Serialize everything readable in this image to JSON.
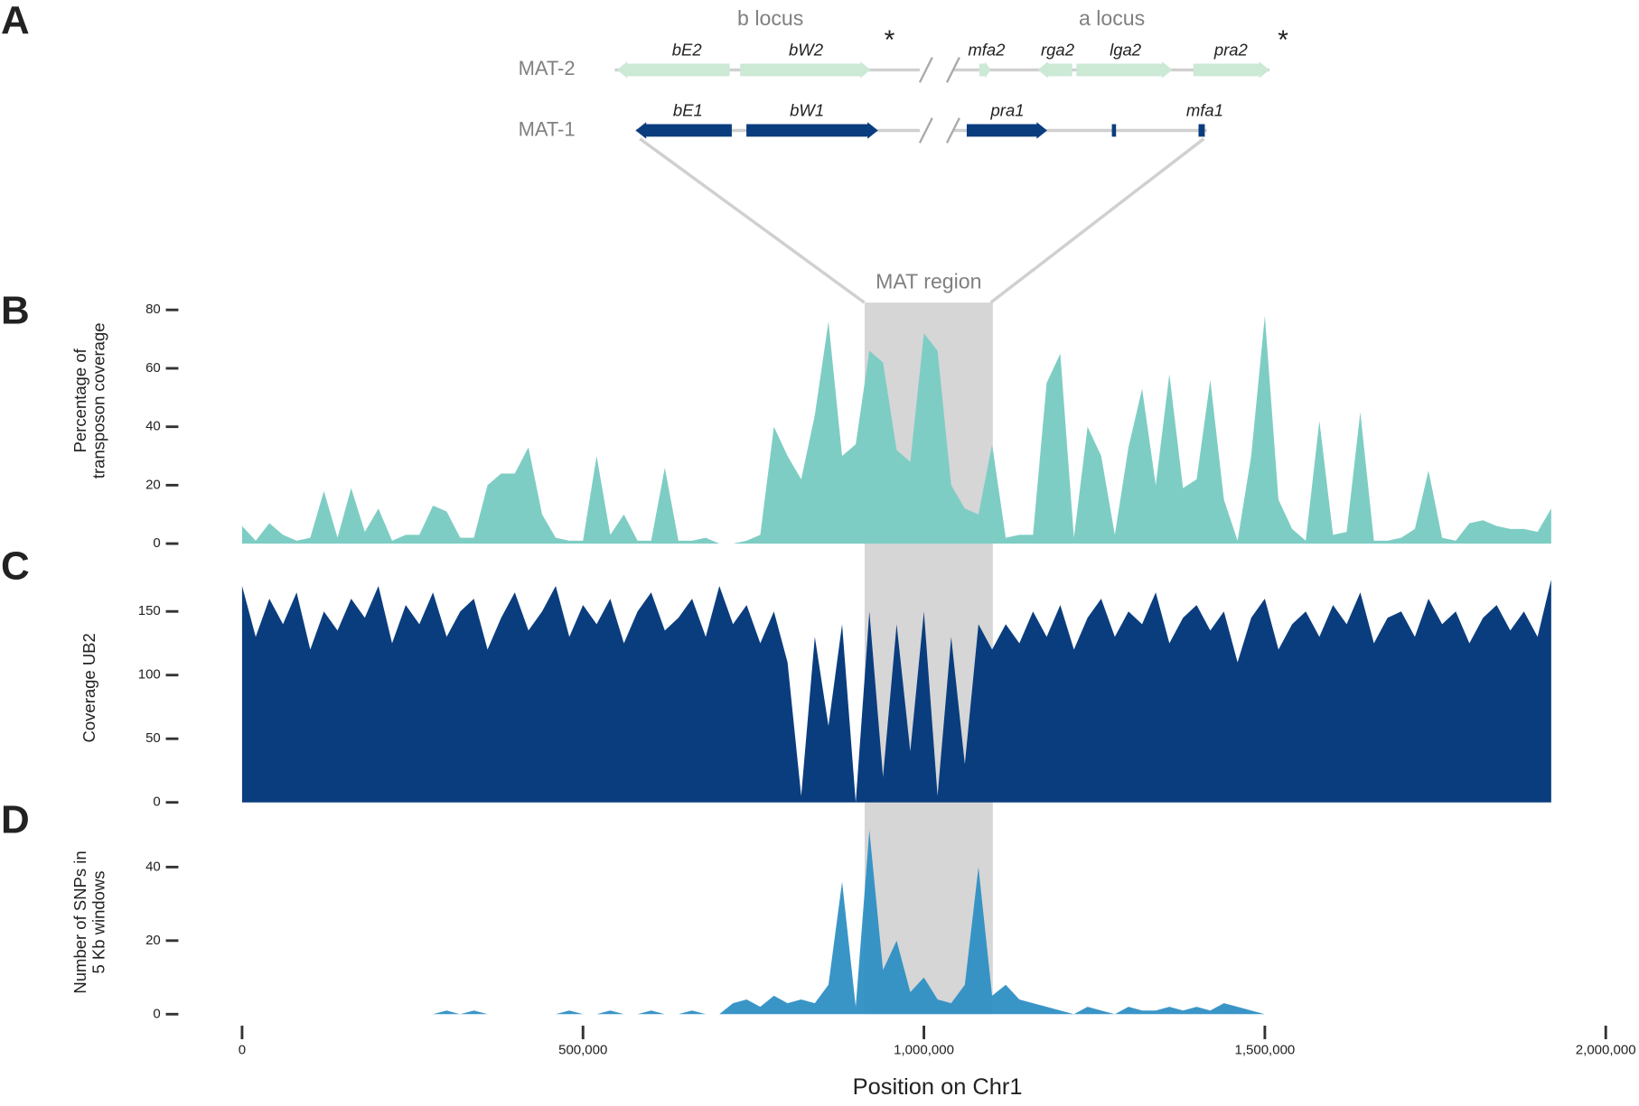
{
  "panel_labels": [
    "A",
    "B",
    "C",
    "D"
  ],
  "diagram": {
    "loci": [
      "b locus",
      "a locus"
    ],
    "asterisk": "*",
    "tracks": [
      {
        "name": "MAT-2",
        "genes": [
          "bE2",
          "bW2",
          "mfa2",
          "rga2",
          "lga2",
          "pra2"
        ]
      },
      {
        "name": "MAT-1",
        "genes": [
          "bE1",
          "bW1",
          "pra1",
          "mfa1"
        ]
      }
    ]
  },
  "highlight": {
    "label": "MAT region",
    "range": [
      913000,
      1101000
    ]
  },
  "chart_data": [
    {
      "type": "area",
      "ylabel": [
        "Percentage of",
        "transposon coverage"
      ],
      "color": "#7ecdc4",
      "ylim": [
        0,
        80
      ],
      "yticks": [
        0,
        20,
        40,
        60,
        80
      ],
      "xlim": [
        0,
        2000000
      ],
      "x": [
        0,
        20000,
        40000,
        60000,
        80000,
        100000,
        120000,
        140000,
        160000,
        180000,
        200000,
        220000,
        240000,
        260000,
        280000,
        300000,
        320000,
        340000,
        360000,
        380000,
        400000,
        420000,
        440000,
        460000,
        480000,
        500000,
        520000,
        540000,
        560000,
        580000,
        600000,
        620000,
        640000,
        660000,
        680000,
        700000,
        720000,
        740000,
        760000,
        780000,
        800000,
        820000,
        840000,
        860000,
        880000,
        900000,
        920000,
        940000,
        960000,
        980000,
        1000000,
        1020000,
        1040000,
        1060000,
        1080000,
        1100000,
        1120000,
        1140000,
        1160000,
        1180000,
        1200000,
        1220000,
        1240000,
        1260000,
        1280000,
        1300000,
        1320000,
        1340000,
        1360000,
        1380000,
        1400000,
        1420000,
        1440000,
        1460000,
        1480000,
        1500000,
        1520000,
        1540000,
        1560000,
        1580000,
        1600000,
        1620000,
        1640000,
        1660000,
        1680000,
        1700000,
        1720000,
        1740000,
        1760000,
        1780000,
        1800000,
        1820000,
        1840000,
        1860000,
        1880000,
        1900000,
        1920000
      ],
      "values": [
        6,
        1,
        7,
        3,
        1,
        2,
        18,
        2,
        19,
        4,
        12,
        1,
        3,
        3,
        13,
        11,
        2,
        2,
        20,
        24,
        24,
        33,
        10,
        2,
        1,
        1,
        30,
        3,
        10,
        1,
        1,
        26,
        1,
        1,
        2,
        0,
        0,
        1,
        3,
        40,
        30,
        22,
        44,
        76,
        30,
        34,
        66,
        62,
        32,
        28,
        72,
        66,
        20,
        12,
        10,
        34,
        2,
        3,
        3,
        55,
        65,
        2,
        40,
        30,
        3,
        33,
        53,
        20,
        58,
        19,
        22,
        56,
        15,
        1,
        30,
        78,
        15,
        5,
        1,
        42,
        3,
        4,
        45,
        1,
        1,
        2,
        5,
        25,
        2,
        1,
        7,
        8,
        6,
        5,
        5,
        4,
        12
      ]
    },
    {
      "type": "area",
      "ylabel": [
        "Coverage UB2"
      ],
      "color": "#0a3d7e",
      "ylim": [
        0,
        180
      ],
      "yticks": [
        0,
        50,
        100,
        150
      ],
      "xlim": [
        0,
        2000000
      ],
      "x": [
        0,
        20000,
        40000,
        60000,
        80000,
        100000,
        120000,
        140000,
        160000,
        180000,
        200000,
        220000,
        240000,
        260000,
        280000,
        300000,
        320000,
        340000,
        360000,
        380000,
        400000,
        420000,
        440000,
        460000,
        480000,
        500000,
        520000,
        540000,
        560000,
        580000,
        600000,
        620000,
        640000,
        660000,
        680000,
        700000,
        720000,
        740000,
        760000,
        780000,
        800000,
        820000,
        840000,
        860000,
        880000,
        900000,
        920000,
        940000,
        960000,
        980000,
        1000000,
        1020000,
        1040000,
        1060000,
        1080000,
        1100000,
        1120000,
        1140000,
        1160000,
        1180000,
        1200000,
        1220000,
        1240000,
        1260000,
        1280000,
        1300000,
        1320000,
        1340000,
        1360000,
        1380000,
        1400000,
        1420000,
        1440000,
        1460000,
        1480000,
        1500000,
        1520000,
        1540000,
        1560000,
        1580000,
        1600000,
        1620000,
        1640000,
        1660000,
        1680000,
        1700000,
        1720000,
        1740000,
        1760000,
        1780000,
        1800000,
        1820000,
        1840000,
        1860000,
        1880000,
        1900000,
        1920000
      ],
      "values": [
        170,
        130,
        160,
        140,
        165,
        120,
        150,
        135,
        160,
        145,
        170,
        125,
        155,
        140,
        165,
        130,
        150,
        160,
        120,
        145,
        165,
        135,
        150,
        170,
        130,
        155,
        140,
        160,
        125,
        150,
        165,
        135,
        145,
        160,
        130,
        170,
        140,
        155,
        125,
        150,
        110,
        5,
        130,
        60,
        140,
        0,
        150,
        20,
        140,
        40,
        150,
        5,
        130,
        30,
        140,
        120,
        140,
        125,
        150,
        130,
        155,
        120,
        145,
        160,
        130,
        150,
        140,
        165,
        125,
        145,
        155,
        135,
        150,
        110,
        145,
        160,
        120,
        140,
        150,
        130,
        155,
        140,
        165,
        125,
        145,
        150,
        130,
        160,
        140,
        150,
        125,
        145,
        155,
        135,
        150,
        130,
        175
      ]
    },
    {
      "type": "area",
      "ylabel": [
        "Number of SNPs in",
        "5 Kb windows"
      ],
      "xlabel": "Position on Chr1",
      "color": "#2f8fc4",
      "ylim": [
        0,
        50
      ],
      "yticks": [
        0,
        20,
        40
      ],
      "xlim": [
        0,
        2000000
      ],
      "xticks": [
        0,
        {
          "value": 500000,
          "label": "500,000"
        },
        {
          "value": 1000000,
          "label": "1,000,000"
        },
        {
          "value": 1500000,
          "label": "1,500,000"
        },
        {
          "value": 2000000,
          "label": "2,000,000"
        }
      ],
      "x": [
        0,
        20000,
        40000,
        60000,
        80000,
        100000,
        120000,
        140000,
        160000,
        180000,
        200000,
        220000,
        240000,
        260000,
        280000,
        300000,
        320000,
        340000,
        360000,
        380000,
        400000,
        420000,
        440000,
        460000,
        480000,
        500000,
        520000,
        540000,
        560000,
        580000,
        600000,
        620000,
        640000,
        660000,
        680000,
        700000,
        720000,
        740000,
        760000,
        780000,
        800000,
        820000,
        840000,
        860000,
        880000,
        900000,
        920000,
        940000,
        960000,
        980000,
        1000000,
        1020000,
        1040000,
        1060000,
        1080000,
        1100000,
        1120000,
        1140000,
        1160000,
        1180000,
        1200000,
        1220000,
        1240000,
        1260000,
        1280000,
        1300000,
        1320000,
        1340000,
        1360000,
        1380000,
        1400000,
        1420000,
        1440000,
        1460000,
        1480000,
        1500000,
        1520000,
        1540000,
        1560000,
        1580000,
        1600000,
        1620000,
        1640000,
        1660000,
        1680000,
        1700000,
        1720000,
        1740000,
        1760000,
        1780000,
        1800000,
        1820000,
        1840000,
        1860000,
        1880000,
        1900000,
        1920000
      ],
      "values": [
        0,
        0,
        0,
        0,
        0,
        0,
        0,
        0,
        0,
        0,
        0,
        0,
        0,
        0,
        0,
        1,
        0,
        1,
        0,
        0,
        0,
        0,
        0,
        0,
        1,
        0,
        0,
        1,
        0,
        0,
        1,
        0,
        0,
        1,
        0,
        0,
        3,
        4,
        2,
        5,
        3,
        4,
        3,
        8,
        36,
        2,
        50,
        12,
        20,
        6,
        10,
        4,
        3,
        8,
        40,
        5,
        8,
        4,
        3,
        2,
        1,
        0,
        2,
        1,
        0,
        2,
        1,
        1,
        2,
        1,
        2,
        1,
        3,
        2,
        1,
        0,
        0,
        0,
        0,
        0,
        0,
        0,
        0,
        0,
        0,
        0,
        0,
        0,
        0,
        0,
        0,
        0,
        0,
        0,
        0,
        0,
        0
      ]
    }
  ]
}
